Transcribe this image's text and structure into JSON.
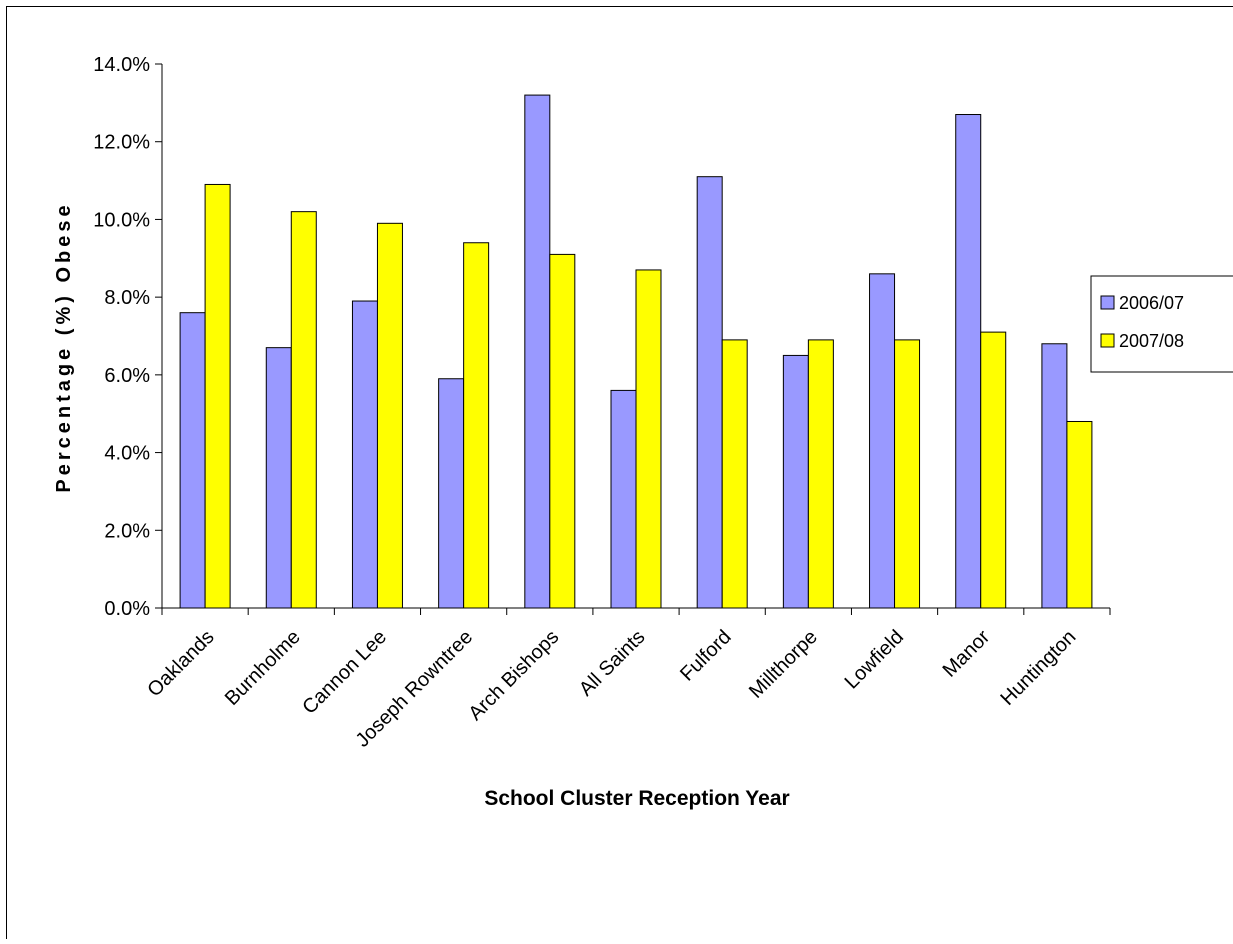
{
  "chart_data": {
    "type": "bar",
    "title": "",
    "xlabel": "School Cluster Reception Year",
    "ylabel": "Percentage (%) Obese",
    "ylim": [
      0,
      14
    ],
    "yticks": [
      "0.0%",
      "2.0%",
      "4.0%",
      "6.0%",
      "8.0%",
      "10.0%",
      "12.0%",
      "14.0%"
    ],
    "grid": false,
    "legend_position": "right",
    "categories": [
      "Oaklands",
      "Burnholme",
      "Cannon Lee",
      "Joseph Rowntree",
      "Arch Bishops",
      "All Saints",
      "Fulford",
      "Millthorpe",
      "Lowfield",
      "Manor",
      "Huntington"
    ],
    "series": [
      {
        "name": "2006/07",
        "color": "#9999ff",
        "values": [
          7.6,
          6.7,
          7.9,
          5.9,
          13.2,
          5.6,
          11.1,
          6.5,
          8.6,
          12.7,
          6.8
        ]
      },
      {
        "name": "2007/08",
        "color": "#ffff00",
        "values": [
          10.9,
          10.2,
          9.9,
          9.4,
          9.1,
          8.7,
          6.9,
          6.9,
          6.9,
          7.1,
          4.8
        ]
      }
    ]
  }
}
